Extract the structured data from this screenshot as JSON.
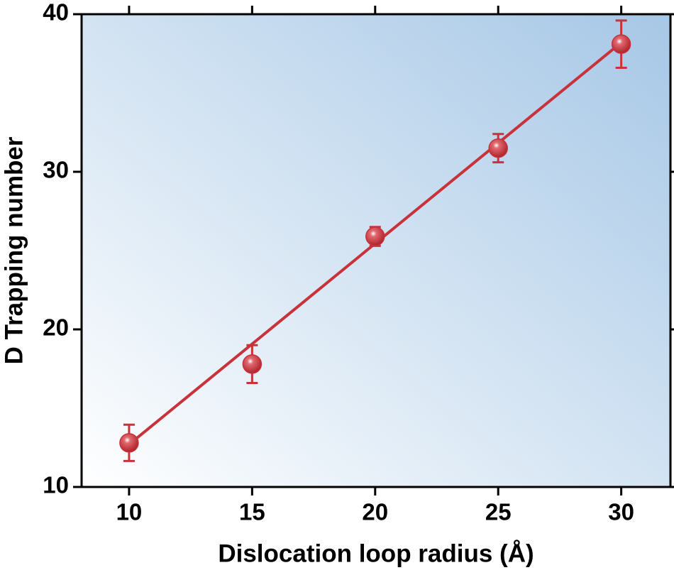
{
  "chart_data": {
    "type": "scatter",
    "x_label": "Dislocation loop radius (Å)",
    "y_label": "D Trapping number",
    "x": [
      10,
      15,
      20,
      25,
      30
    ],
    "values": [
      12.8,
      17.8,
      25.9,
      31.5,
      38.1
    ],
    "errors": [
      1.15,
      1.2,
      0.6,
      0.9,
      1.5
    ],
    "color": "#c8323a",
    "fit": {
      "x": [
        10,
        30
      ],
      "values": [
        12.7,
        38.2
      ]
    },
    "xlim": [
      8.07,
      32
    ],
    "ylim": [
      10,
      40
    ],
    "xticks": [
      10,
      15,
      20,
      25,
      30
    ],
    "yticks": [
      10,
      20,
      30,
      40
    ]
  }
}
